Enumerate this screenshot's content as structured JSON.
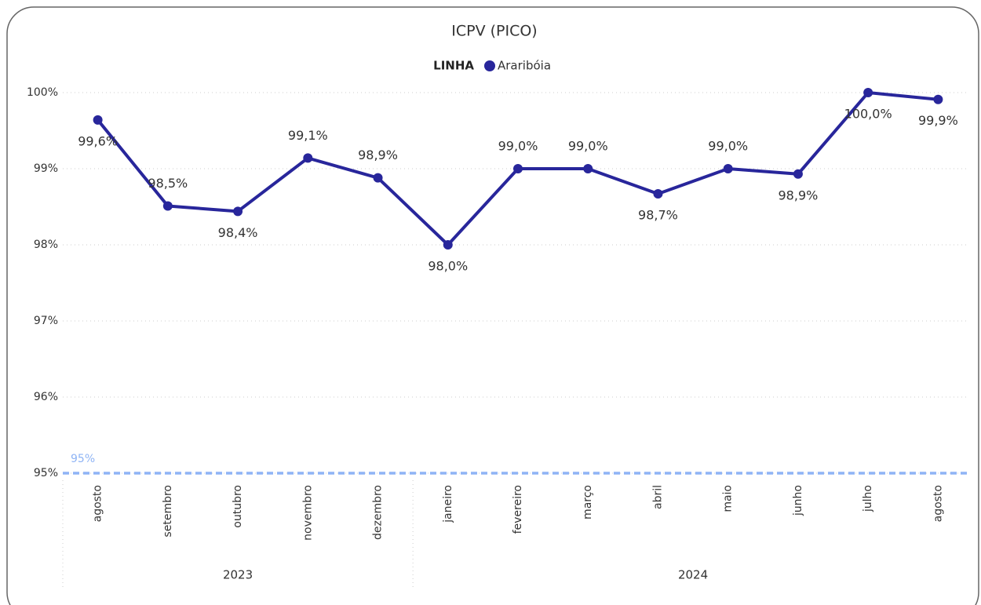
{
  "chart_data": {
    "type": "line",
    "title": "ICPV (PICO)",
    "legend_title": "LINHA",
    "legend_position": "top",
    "categories": [
      "agosto",
      "setembro",
      "outubro",
      "novembro",
      "dezembro",
      "janeiro",
      "fevereiro",
      "março",
      "abril",
      "maio",
      "junho",
      "julho",
      "agosto"
    ],
    "category_years": [
      "2023",
      "2023",
      "2023",
      "2023",
      "2023",
      "2024",
      "2024",
      "2024",
      "2024",
      "2024",
      "2024",
      "2024",
      "2024"
    ],
    "series": [
      {
        "name": "Araribóia",
        "color": "#28269b",
        "values": [
          99.64,
          98.51,
          98.44,
          99.14,
          98.88,
          98.0,
          99.0,
          99.0,
          98.67,
          99.0,
          98.93,
          100.0,
          99.91
        ],
        "value_labels": [
          "99,6%",
          "98,5%",
          "98,4%",
          "99,1%",
          "98,9%",
          "98,0%",
          "99,0%",
          "99,0%",
          "98,7%",
          "99,0%",
          "98,9%",
          "100,0%",
          "99,9%"
        ]
      }
    ],
    "ylim": [
      95,
      100
    ],
    "yticks": [
      {
        "value": 95,
        "label": "95%"
      },
      {
        "value": 96,
        "label": "96%"
      },
      {
        "value": 97,
        "label": "97%"
      },
      {
        "value": 98,
        "label": "98%"
      },
      {
        "value": 99,
        "label": "99%"
      },
      {
        "value": 100,
        "label": "100%"
      }
    ],
    "grid": true,
    "reference_line": {
      "value": 95,
      "label": "95%",
      "color": "#8fb4f5"
    }
  }
}
